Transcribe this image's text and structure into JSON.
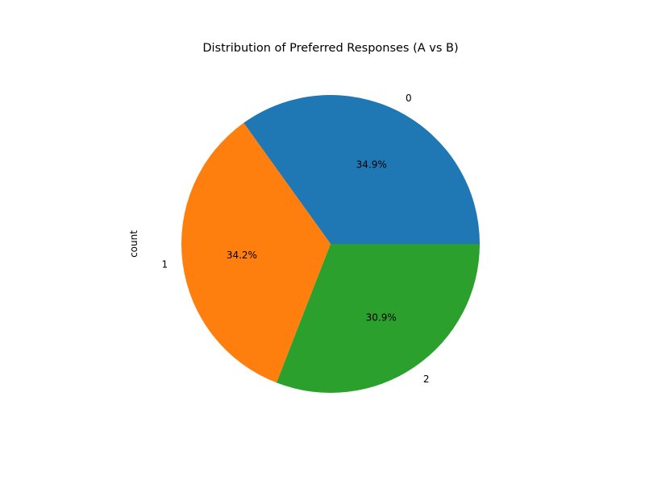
{
  "chart_data": {
    "type": "pie",
    "title": "Distribution of Preferred Responses (A vs B)",
    "ylabel": "count",
    "categories": [
      "0",
      "1",
      "2"
    ],
    "values": [
      34.9,
      34.2,
      30.9
    ],
    "value_labels": [
      "34.9%",
      "34.2%",
      "30.9%"
    ],
    "colors": [
      "#1f77b4",
      "#ff7f0e",
      "#2ca02c"
    ],
    "start_angle": 0,
    "direction": "counterclockwise",
    "legend": "none"
  }
}
